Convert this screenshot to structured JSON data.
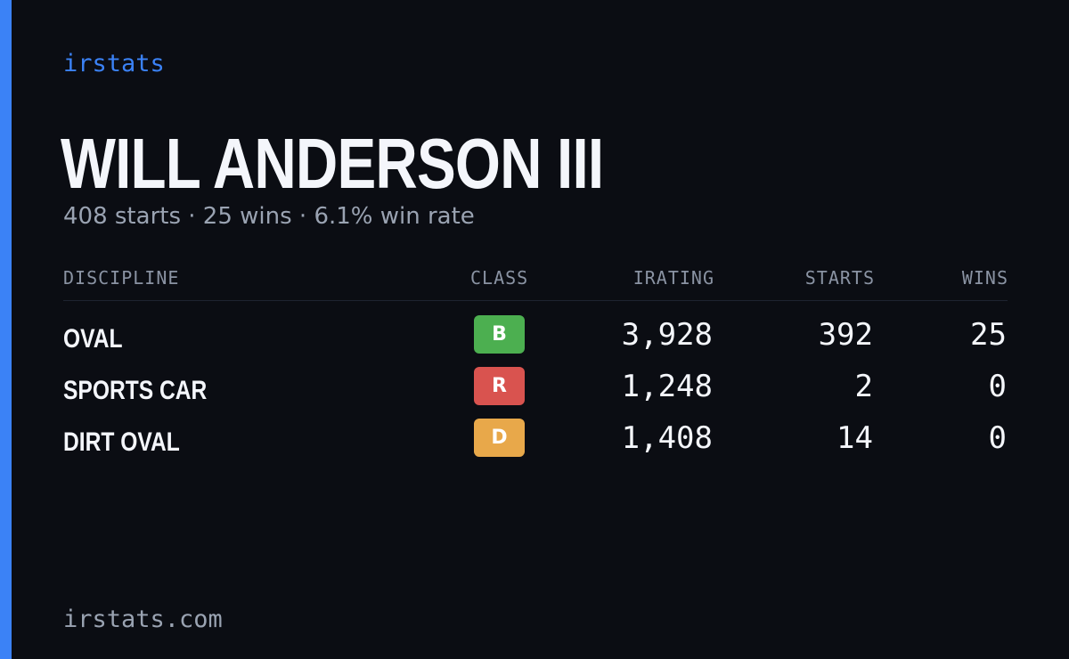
{
  "header": {
    "brand": "irstats",
    "name": "WILL ANDERSON III",
    "summary": "408 starts · 25 wins · 6.1% win rate"
  },
  "table": {
    "columns": [
      "DISCIPLINE",
      "CLASS",
      "IRATING",
      "STARTS",
      "WINS"
    ],
    "rows": [
      [
        "OVAL",
        "B",
        "3,928",
        "392",
        "25"
      ],
      [
        "SPORTS CAR",
        "R",
        "1,248",
        "2",
        "0"
      ],
      [
        "DIRT OVAL",
        "D",
        "1,408",
        "14",
        "0"
      ]
    ]
  },
  "footer": {
    "site": "irstats.com"
  }
}
